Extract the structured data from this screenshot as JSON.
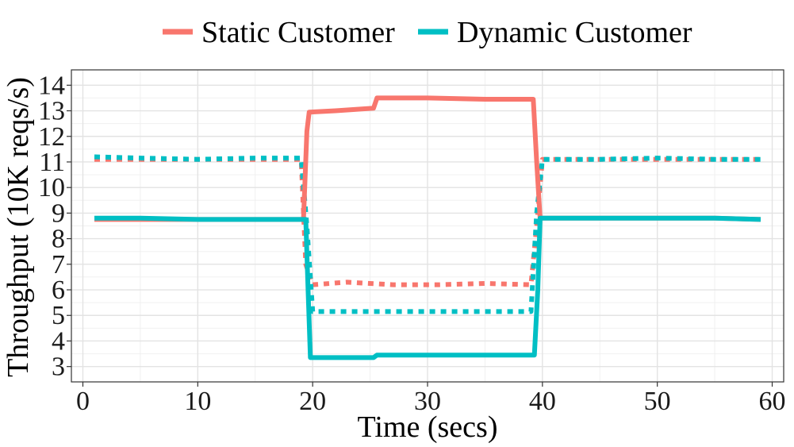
{
  "chart_data": {
    "type": "line",
    "title": "",
    "xlabel": "Time (secs)",
    "ylabel": "Throughput (10K reqs/s)",
    "xlim": [
      -1,
      61
    ],
    "ylim": [
      2.4,
      14.6
    ],
    "xticks": [
      0,
      10,
      20,
      30,
      40,
      50,
      60
    ],
    "yticks": [
      3,
      4,
      5,
      6,
      7,
      8,
      9,
      10,
      11,
      12,
      13,
      14
    ],
    "grid": true,
    "legend_position": "top",
    "legend": [
      {
        "label": "Static Customer",
        "color": "#F8766D"
      },
      {
        "label": "Dynamic Customer",
        "color": "#00BFC4"
      }
    ],
    "series": [
      {
        "name": "Static Customer",
        "style": "solid",
        "color": "#F8766D",
        "x": [
          1,
          5,
          10,
          15,
          19.2,
          19.5,
          19.7,
          22,
          25.3,
          25.6,
          30,
          35,
          39.2,
          39.5,
          39.8,
          45,
          50,
          55,
          59
        ],
        "values": [
          8.75,
          8.75,
          8.75,
          8.75,
          8.75,
          12.2,
          12.95,
          13.0,
          13.1,
          13.5,
          13.5,
          13.45,
          13.45,
          11.0,
          8.8,
          8.8,
          8.8,
          8.8,
          8.75
        ]
      },
      {
        "name": "Static Customer",
        "style": "dashed",
        "color": "#F8766D",
        "x": [
          1,
          5,
          10,
          15,
          19,
          19.4,
          20,
          23,
          27,
          31,
          35,
          39,
          39.5,
          40,
          45,
          50,
          55,
          59
        ],
        "values": [
          11.1,
          11.1,
          11.1,
          11.1,
          11.1,
          7.0,
          6.2,
          6.3,
          6.2,
          6.2,
          6.25,
          6.2,
          8.5,
          11.1,
          11.1,
          11.1,
          11.1,
          11.1
        ]
      },
      {
        "name": "Dynamic Customer",
        "style": "solid",
        "color": "#00BFC4",
        "x": [
          1,
          5,
          10,
          15,
          19.4,
          19.6,
          19.8,
          22,
          25.3,
          25.6,
          30,
          35,
          39.3,
          39.6,
          39.8,
          45,
          50,
          55,
          59
        ],
        "values": [
          8.8,
          8.8,
          8.75,
          8.75,
          8.75,
          6.0,
          3.35,
          3.35,
          3.35,
          3.45,
          3.45,
          3.45,
          3.45,
          6.0,
          8.8,
          8.8,
          8.8,
          8.8,
          8.75
        ]
      },
      {
        "name": "Dynamic Customer",
        "style": "dashed",
        "color": "#00BFC4",
        "x": [
          1,
          5,
          10,
          15,
          19,
          19.5,
          20,
          25,
          30,
          35,
          39,
          39.5,
          40,
          45,
          50,
          55,
          59
        ],
        "values": [
          11.2,
          11.15,
          11.1,
          11.15,
          11.15,
          8.5,
          5.15,
          5.15,
          5.15,
          5.15,
          5.15,
          9.0,
          11.1,
          11.1,
          11.15,
          11.1,
          11.1
        ]
      }
    ]
  }
}
